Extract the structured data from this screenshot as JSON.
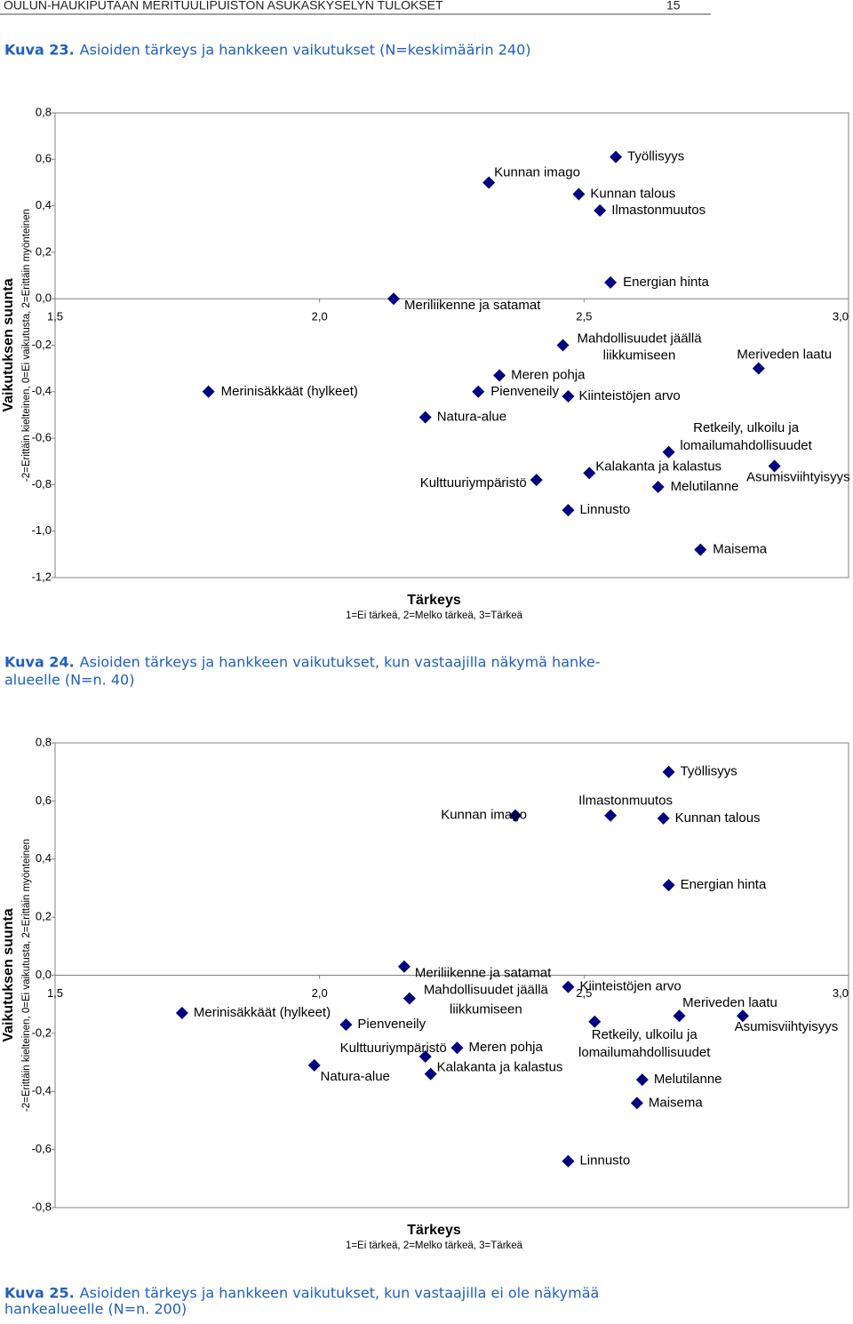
{
  "header": {
    "title": "OULUN-HAUKIPUTAAN MERITUULIPUISTON ASUKASKYSELYN TULOKSET",
    "page": 15
  },
  "captions": [
    {
      "number": "Kuva 23.",
      "lines": [
        "Asioiden tärkeys ja hankkeen vaikutukset (N=keskimäärin 240)"
      ]
    },
    {
      "number": "Kuva 24.",
      "lines": [
        "Asioiden tärkeys ja hankkeen vaikutukset, kun vastaajilla näkymä hanke-",
        "alueelle (N=n. 40)"
      ]
    },
    {
      "number": "Kuva 25.",
      "lines": [
        "Asioiden tärkeys ja hankkeen vaikutukset, kun vastaajilla ei ole näkymää",
        "hankealueelle (N=n. 200)"
      ]
    }
  ],
  "chart_data": [
    {
      "type": "scatter",
      "marker": "diamond",
      "color": "#000080",
      "x_label": "Tärkeys",
      "x_note": "1=Ei tärkeä, 2=Melko tärkeä, 3=Tärkeä",
      "y_label": "Vaikutuksen suunta",
      "y_note": "-2=Erittäin kielteinen, 0=Ei vaikutusta, 2=Erittäin myönteinen",
      "labels": [
        "Työllisyys",
        "Kunnan imago",
        "Kunnan talous",
        "Ilmastonmuutos",
        "Energian hinta",
        "Meriliikenne ja satamat",
        [
          "Mahdollisuudet jäällä",
          "liikkumiseen"
        ],
        "Meriveden laatu",
        "Meren pohja",
        "Merinisäkkäät (hylkeet)",
        "Pienveneily",
        "Kiinteistöjen arvo",
        "Natura-alue",
        [
          "Retkeily, ulkoilu ja",
          "lomailumahdollisuudet"
        ],
        "Asumisviihtyisyys",
        "Kalakanta ja kalastus",
        "Kulttuuriympäristö",
        "Melutilanne",
        "Linnusto",
        "Maisema"
      ],
      "x": [
        2.56,
        2.32,
        2.49,
        2.53,
        2.55,
        2.14,
        2.46,
        2.83,
        2.34,
        1.79,
        2.3,
        2.47,
        2.2,
        2.66,
        2.86,
        2.51,
        2.41,
        2.64,
        2.47,
        2.72
      ],
      "values": [
        0.61,
        0.5,
        0.45,
        0.38,
        0.07,
        0.0,
        -0.2,
        -0.3,
        -0.33,
        -0.4,
        -0.4,
        -0.42,
        -0.51,
        -0.66,
        -0.72,
        -0.75,
        -0.78,
        -0.81,
        -0.91,
        -1.08
      ],
      "xlim": [
        1.5,
        3.0
      ],
      "ylim": [
        -1.2,
        0.8
      ],
      "xticks": [
        {
          "value": 1.5,
          "label": "1,5"
        },
        {
          "value": 2.0,
          "label": "2,0"
        },
        {
          "value": 2.5,
          "label": "2,5"
        },
        {
          "value": 3.0,
          "label": "3,0"
        }
      ],
      "yticks": [
        {
          "value": 0.8,
          "label": "0,8"
        },
        {
          "value": 0.6,
          "label": "0,6"
        },
        {
          "value": 0.4,
          "label": "0,4"
        },
        {
          "value": 0.2,
          "label": "0,2"
        },
        {
          "value": 0.0,
          "label": "0,0"
        },
        {
          "value": -0.2,
          "label": "-0,2"
        },
        {
          "value": -0.4,
          "label": "-0,4"
        },
        {
          "value": -0.6,
          "label": "-0,6"
        },
        {
          "value": -0.8,
          "label": "-0,8"
        },
        {
          "value": -1.0,
          "label": "-1,0"
        },
        {
          "value": -1.2,
          "label": "-1,2"
        }
      ]
    },
    {
      "type": "scatter",
      "marker": "diamond",
      "color": "#000080",
      "x_label": "Tärkeys",
      "x_note": "1=Ei tärkeä, 2=Melko tärkeä, 3=Tärkeä",
      "y_label": "Vaikutuksen suunta",
      "y_note": "-2=Erittäin kielteinen, 0=Ei vaikutusta, 2=Erittäin myönteinen",
      "labels": [
        "Työllisyys",
        "Kunnan imago",
        "Ilmastonmuutos",
        "Kunnan talous",
        "Energian hinta",
        "Meriliikenne ja satamat",
        [
          "Mahdollisuudet jäällä",
          "liikkumiseen"
        ],
        "Kiinteistöjen arvo",
        "Meriveden laatu",
        "Asumisviihtyisyys",
        "Merinisäkkäät (hylkeet)",
        "Pienveneily",
        [
          "Retkeily, ulkoilu ja",
          "lomailumahdollisuudet"
        ],
        "Meren pohja",
        "Kulttuuriympäristö",
        "Natura-alue",
        "Kalakanta ja kalastus",
        "Melutilanne",
        "Maisema",
        "Linnusto"
      ],
      "x": [
        2.66,
        2.37,
        2.55,
        2.65,
        2.66,
        2.16,
        2.17,
        2.47,
        2.68,
        2.8,
        1.74,
        2.05,
        2.52,
        2.26,
        2.2,
        1.99,
        2.21,
        2.61,
        2.6,
        2.47
      ],
      "values": [
        0.7,
        0.55,
        0.55,
        0.54,
        0.31,
        0.03,
        -0.08,
        -0.04,
        -0.14,
        -0.14,
        -0.13,
        -0.17,
        -0.16,
        -0.25,
        -0.28,
        -0.31,
        -0.34,
        -0.36,
        -0.44,
        -0.64
      ],
      "xlim": [
        1.5,
        3.0
      ],
      "ylim": [
        -0.8,
        0.8
      ],
      "xticks": [
        {
          "value": 1.5,
          "label": "1,5"
        },
        {
          "value": 2.0,
          "label": "2,0"
        },
        {
          "value": 2.5,
          "label": "2,5"
        },
        {
          "value": 3.0,
          "label": "3,0"
        }
      ],
      "yticks": [
        {
          "value": 0.8,
          "label": "0,8"
        },
        {
          "value": 0.6,
          "label": "0,6"
        },
        {
          "value": 0.4,
          "label": "0,4"
        },
        {
          "value": 0.2,
          "label": "0,2"
        },
        {
          "value": 0.0,
          "label": "0,0"
        },
        {
          "value": -0.2,
          "label": "-0,2"
        },
        {
          "value": -0.4,
          "label": "-0,4"
        },
        {
          "value": -0.6,
          "label": "-0,6"
        },
        {
          "value": -0.8,
          "label": "-0,8"
        }
      ]
    }
  ]
}
